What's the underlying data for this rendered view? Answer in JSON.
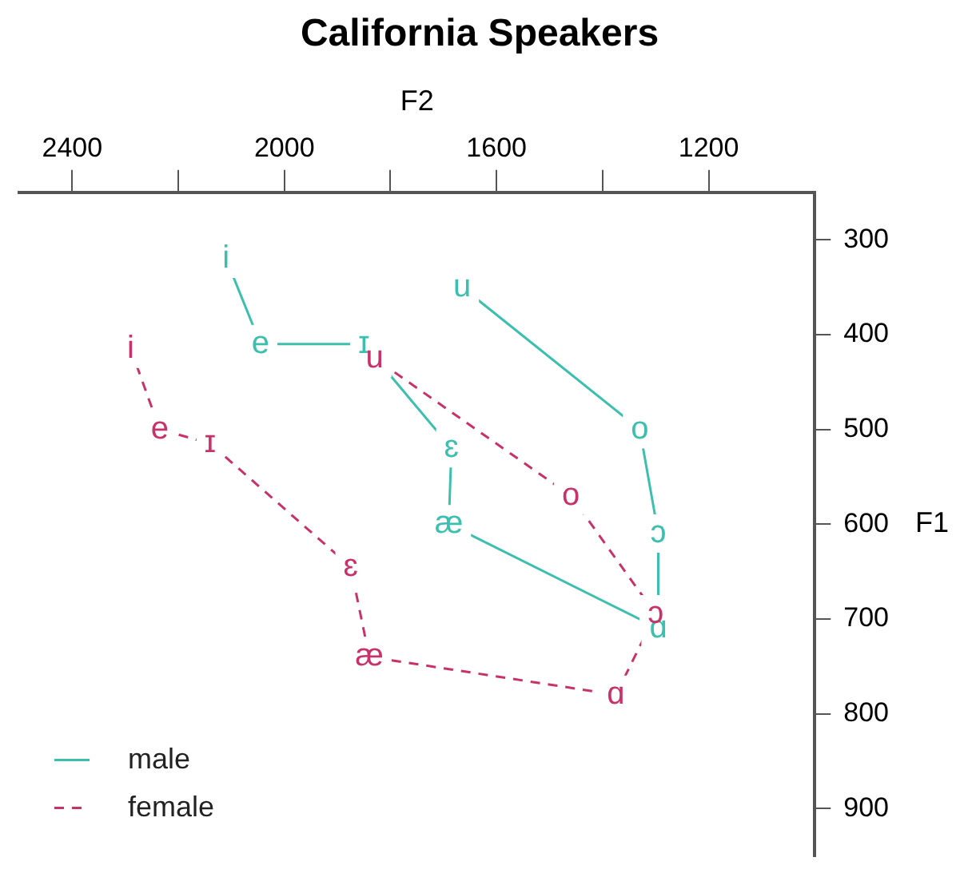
{
  "chart_data": {
    "type": "line",
    "title": "California Speakers",
    "xlabel": "F2",
    "ylabel": "F1",
    "xlim": [
      2500,
      1000
    ],
    "xticks": [
      2400,
      {
        "value": 2200,
        "label": null
      },
      2000,
      {
        "value": 1800,
        "label": null
      },
      1600,
      {
        "value": 1400,
        "label": null
      },
      1200
    ],
    "ylim": [
      950,
      250
    ],
    "yticks": [
      300,
      400,
      500,
      600,
      700,
      800,
      900
    ],
    "grid": false,
    "legend": "bottom left",
    "series": [
      {
        "name": "male",
        "color": "#3cbfae",
        "line_style": "solid",
        "x": [
          2110,
          2045,
          1850,
          1685,
          1690,
          1295,
          1295,
          1330,
          1665
        ],
        "values": [
          320,
          410,
          410,
          520,
          600,
          710,
          610,
          500,
          350
        ],
        "value_labels": [
          "i",
          "e",
          "ɪ",
          "ɛ",
          "æ",
          "ɑ",
          "ɔ",
          "o",
          "u"
        ]
      },
      {
        "name": "female",
        "color": "#c8326a",
        "line_style": "dashed",
        "x": [
          2290,
          2235,
          2140,
          1875,
          1840,
          1375,
          1300,
          1460,
          1830
        ],
        "values": [
          415,
          500,
          515,
          645,
          740,
          780,
          695,
          570,
          425
        ],
        "value_labels": [
          "i",
          "e",
          "ɪ",
          "ɛ",
          "æ",
          "ɑ",
          "ɔ",
          "o",
          "u"
        ]
      }
    ]
  }
}
